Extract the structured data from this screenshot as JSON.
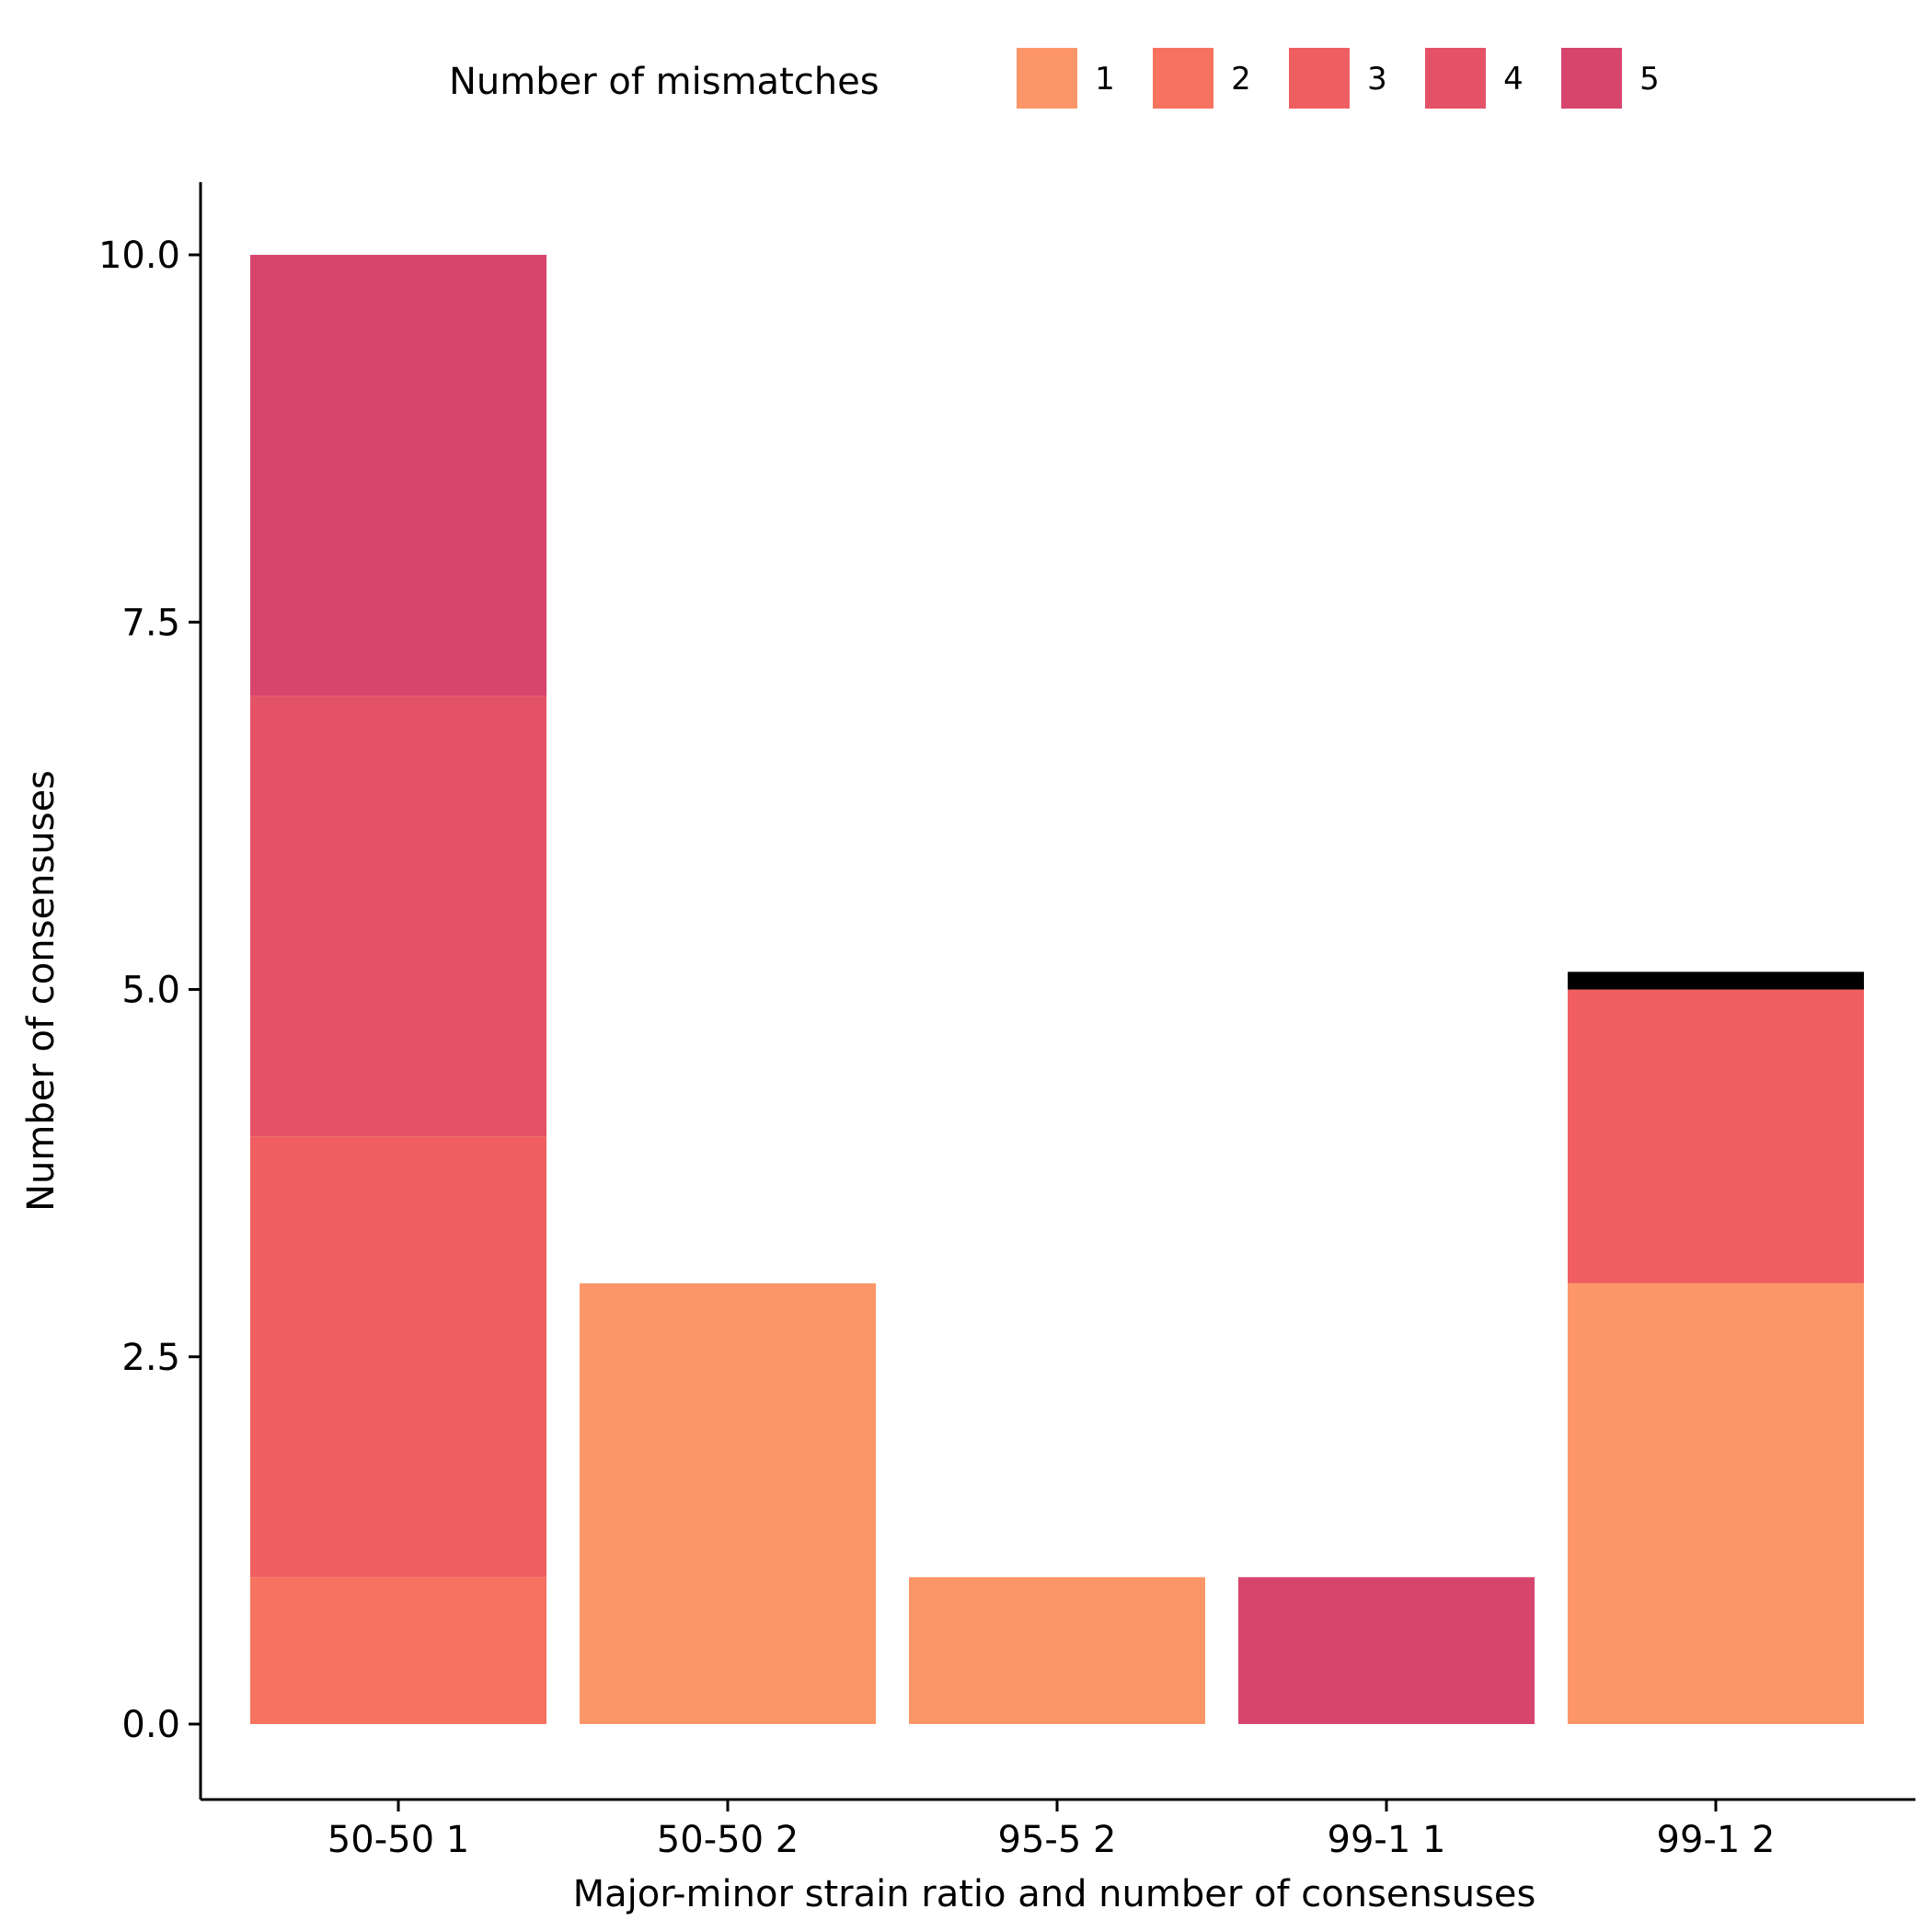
{
  "chart_data": {
    "type": "bar",
    "stacked": true,
    "xlabel": "Major-minor strain ratio and number of consensuses",
    "ylabel": "Number of consensuses",
    "categories": [
      "50-50 1",
      "50-50 2",
      "95-5 2",
      "99-1 1",
      "99-1 2"
    ],
    "yticks": [
      "0.0",
      "2.5",
      "5.0",
      "7.5",
      "10.0"
    ],
    "ylim": [
      -0.5,
      10.5
    ],
    "grid": false,
    "legend": {
      "title": "Number of mismatches",
      "position": "top"
    },
    "series": [
      {
        "name": "1",
        "color": "#FC9669",
        "values": [
          0,
          3,
          1,
          0,
          3
        ]
      },
      {
        "name": "2",
        "color": "#F7735F",
        "values": [
          1,
          0,
          0,
          0,
          0
        ]
      },
      {
        "name": "3",
        "color": "#EF5F61",
        "values": [
          3,
          0,
          0,
          0,
          2
        ]
      },
      {
        "name": "4",
        "color": "#E45267",
        "values": [
          3,
          0,
          0,
          0,
          0
        ]
      },
      {
        "name": "5",
        "color": "#D7456D",
        "values": [
          3,
          0,
          0,
          1,
          0
        ]
      }
    ],
    "extra_segments": [
      {
        "category": "99-1 2",
        "value": 0.12,
        "color": "#000000"
      }
    ]
  }
}
